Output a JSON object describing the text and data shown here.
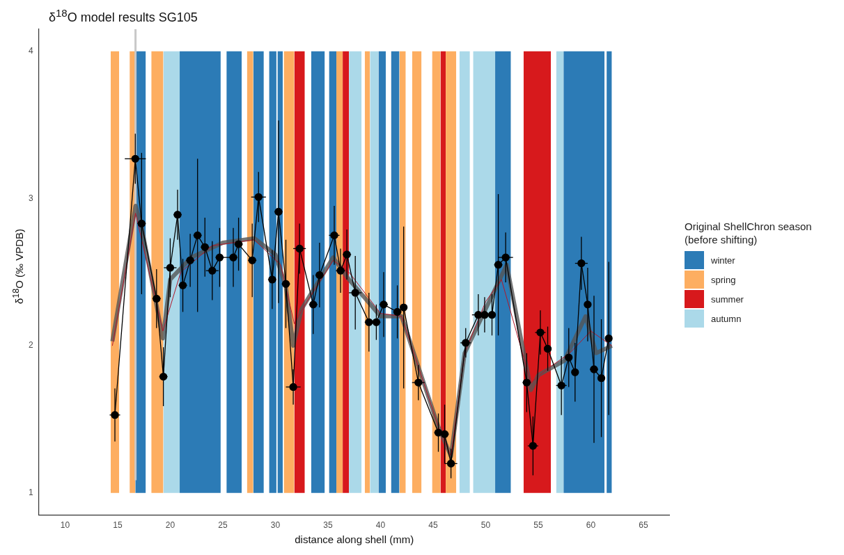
{
  "chart_data": {
    "type": "line",
    "title": "δ$^{18}$O model results SG105",
    "xlabel": "distance along shell (mm)",
    "ylabel": "δ$^{18}$O (‰ VPDB)",
    "legend_title": "Original ShellChron season\n(before shifting)",
    "legend": "right",
    "grid": false,
    "xlim": [
      7.5,
      67.5
    ],
    "xticks": [
      10,
      15,
      20,
      25,
      30,
      35,
      40,
      45,
      50,
      55,
      60,
      65
    ],
    "ylim": [
      0.85,
      4.15
    ],
    "yticks": [
      1,
      2,
      3,
      4
    ],
    "ref_lines": [
      {
        "axis": "x",
        "value": 16.7,
        "color": "#c8c8c8"
      }
    ],
    "series": [
      {
        "type": "area",
        "name": "winter",
        "color": "#2c7bb6",
        "x": [
          16.68,
          17.68,
          19,
          20.9,
          24.8,
          25,
          25.35,
          26.8,
          27,
          27.9,
          28.9,
          29,
          29.4,
          30.1,
          30.15,
          30.2,
          30.7,
          32,
          33.4,
          34.7,
          35,
          35.1,
          35.8,
          38,
          39.8,
          40.5,
          40.7,
          41.0,
          41.8,
          46,
          50.9,
          52.4,
          55,
          57.4,
          61.3,
          61.4,
          61.5,
          62.0
        ],
        "values": [
          4,
          4,
          null,
          4,
          4,
          null,
          4,
          4,
          null,
          4,
          4,
          null,
          4,
          4,
          null,
          4,
          4,
          null,
          4,
          4,
          null,
          4,
          4,
          null,
          4,
          4,
          null,
          4,
          4,
          null,
          4,
          4,
          null,
          4,
          4,
          null,
          4,
          4
        ]
      },
      {
        "type": "area",
        "name": "spring",
        "color": "#fdae61",
        "x": [
          14.34,
          15.14,
          15.5,
          16.14,
          16.68,
          17.5,
          18.2,
          19.35,
          23,
          27.3,
          27.9,
          29,
          30.8,
          31.8,
          33,
          35.8,
          36.4,
          37.5,
          38.5,
          39.0,
          40,
          41.8,
          42.4,
          42.7,
          43.0,
          43.9,
          44.4,
          44.9,
          45.7,
          46,
          46.2,
          47.2
        ],
        "values": [
          4,
          4,
          null,
          4,
          4,
          null,
          4,
          4,
          null,
          4,
          4,
          null,
          4,
          4,
          null,
          4,
          4,
          null,
          4,
          4,
          null,
          4,
          4,
          null,
          4,
          4,
          null,
          4,
          4,
          null,
          4,
          4
        ]
      },
      {
        "type": "area",
        "name": "summer",
        "color": "#d7191c",
        "x": [
          31.8,
          32.8,
          34,
          36.4,
          37.0,
          40,
          45.7,
          46.2,
          50,
          53.6,
          56.2
        ],
        "values": [
          4,
          4,
          null,
          4,
          4,
          null,
          4,
          4,
          null,
          4,
          4
        ]
      },
      {
        "type": "area",
        "name": "autumn",
        "color": "#abd9e9",
        "x": [
          19.35,
          20.9,
          30,
          37.0,
          38.2,
          38.6,
          39.0,
          39.8,
          44,
          47.5,
          48.5,
          48.6,
          48.8,
          50.9,
          54,
          56.7,
          57.4
        ],
        "values": [
          4,
          4,
          null,
          4,
          4,
          null,
          4,
          4,
          null,
          4,
          4,
          null,
          4,
          4,
          null,
          4,
          4
        ]
      },
      {
        "color": "#555555",
        "marker": "none",
        "x": [
          14.5,
          16.7,
          17.3,
          19.3,
          20,
          22,
          25,
          28,
          30,
          31,
          31.7,
          32.5,
          35.5,
          37,
          40,
          42,
          45.5,
          46.7,
          48,
          50,
          52,
          54.3,
          55,
          57.5,
          59.5,
          60.5,
          62
        ],
        "values": [
          2.03,
          2.95,
          2.8,
          2.05,
          2.45,
          2.6,
          2.7,
          2.73,
          2.62,
          2.4,
          2.0,
          2.25,
          2.6,
          2.45,
          2.2,
          2.2,
          1.45,
          1.25,
          1.95,
          2.25,
          2.55,
          1.7,
          1.8,
          1.9,
          2.2,
          1.95,
          2.0
        ]
      },
      {
        "color": "#b2182b",
        "marker": "none",
        "x": [
          14.5,
          16.7,
          19.3,
          21,
          24,
          28,
          30.5,
          31.8,
          33,
          35.5,
          37,
          40,
          42,
          45.5,
          46.7,
          48,
          50,
          51.5,
          54.3,
          56,
          58,
          60,
          62
        ],
        "values": [
          2.0,
          2.9,
          2.1,
          2.5,
          2.68,
          2.72,
          2.55,
          2.15,
          2.3,
          2.58,
          2.5,
          2.22,
          2.2,
          1.45,
          1.25,
          1.95,
          2.3,
          2.45,
          1.75,
          1.85,
          1.95,
          2.1,
          2.0
        ]
      },
      {
        "color": "#000000",
        "marker": "circle",
        "x": [
          14.74,
          16.68,
          17.28,
          18.7,
          19.35,
          20.0,
          20.7,
          21.2,
          21.9,
          22.6,
          23.3,
          24.0,
          24.7,
          26.0,
          26.5,
          27.8,
          28.4,
          29.7,
          30.3,
          31.0,
          31.7,
          32.3,
          33.6,
          34.2,
          35.6,
          36.2,
          36.8,
          37.6,
          38.9,
          39.6,
          40.3,
          41.6,
          42.2,
          43.6,
          45.5,
          46.1,
          46.7,
          48.1,
          49.3,
          49.9,
          50.6,
          51.2,
          51.9,
          53.9,
          54.5,
          55.2,
          55.9,
          57.2,
          57.9,
          58.5,
          59.1,
          59.7,
          60.3,
          61.0,
          61.7
        ],
        "values": [
          1.53,
          3.27,
          2.83,
          2.32,
          1.79,
          2.53,
          2.89,
          2.41,
          2.58,
          2.75,
          2.67,
          2.51,
          2.6,
          2.6,
          2.69,
          2.58,
          3.01,
          2.45,
          2.91,
          2.42,
          1.72,
          2.66,
          2.28,
          2.48,
          2.75,
          2.51,
          2.62,
          2.36,
          2.16,
          2.16,
          2.28,
          2.23,
          2.26,
          1.75,
          1.41,
          1.4,
          1.2,
          2.02,
          2.21,
          2.21,
          2.21,
          2.55,
          2.6,
          1.75,
          1.32,
          2.09,
          1.98,
          1.73,
          1.92,
          1.82,
          2.56,
          2.28,
          1.84,
          1.78,
          2.05
        ],
        "errors": [
          0.18,
          0.17,
          0.48,
          0.2,
          0.2,
          0.2,
          0.17,
          0.18,
          0.18,
          0.52,
          0.2,
          0.2,
          0.2,
          0.2,
          0.18,
          0.25,
          0.17,
          0.2,
          0.62,
          0.3,
          0.12,
          0.17,
          0.2,
          0.22,
          0.2,
          0.15,
          0.17,
          0.25,
          0.2,
          0.12,
          0.22,
          0.18,
          0.55,
          0.12,
          0.13,
          0.2,
          0.1,
          0.1,
          0.14,
          0.12,
          0.14,
          0.48,
          0.17,
          0.2,
          0.2,
          0.15,
          0.15,
          0.2,
          0.2,
          0.2,
          0.18,
          0.25,
          0.5,
          0.4,
          0.52
        ],
        "xerrors": [
          0.5,
          1.0,
          0.4,
          0.4,
          0.4,
          0.6,
          0.4,
          0.4,
          0.4,
          0.4,
          0.4,
          0.6,
          0.4,
          0.4,
          0.4,
          0.4,
          0.7,
          0.4,
          0.4,
          0.4,
          0.7,
          0.6,
          0.4,
          0.4,
          0.5,
          0.45,
          0.4,
          0.6,
          0.4,
          0.4,
          0.4,
          0.4,
          0.3,
          0.6,
          0.4,
          0.4,
          0.6,
          0.5,
          0.6,
          0.3,
          0.3,
          0.4,
          0.7,
          0.4,
          0.5,
          0.5,
          0.3,
          0.5,
          0.3,
          0.3,
          0.6,
          0.3,
          0.4,
          0.3,
          0.3
        ]
      }
    ]
  }
}
